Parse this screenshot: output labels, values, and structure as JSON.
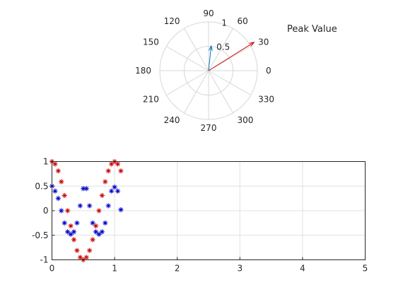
{
  "chart_data": [
    {
      "type": "polar",
      "annotation": "Peak Value",
      "angle_ticks": [
        "0",
        "30",
        "60",
        "90",
        "120",
        "150",
        "180",
        "210",
        "240",
        "270",
        "300",
        "330"
      ],
      "radius_ticks": [
        "0.5",
        "1"
      ],
      "rlim": [
        0,
        1
      ],
      "grid": true,
      "vectors": [
        {
          "angle_deg": 32,
          "magnitude": 1.1,
          "color": "#cc0000"
        },
        {
          "angle_deg": 84,
          "magnitude": 0.51,
          "color": "#0072bd"
        }
      ]
    },
    {
      "type": "scatter",
      "marker": "*",
      "xlim": [
        0,
        5
      ],
      "ylim": [
        -1,
        1
      ],
      "xticks": [
        "0",
        "1",
        "2",
        "3",
        "4",
        "5"
      ],
      "yticks": [
        "-1",
        "-0.5",
        "0",
        "0.5",
        "1"
      ],
      "grid": true,
      "series": [
        {
          "color": "#cc0000",
          "x": [
            0.0,
            0.05,
            0.1,
            0.15,
            0.2,
            0.25,
            0.3,
            0.35,
            0.4,
            0.45,
            0.5,
            0.55,
            0.6,
            0.65,
            0.7,
            0.75,
            0.8,
            0.85,
            0.9,
            0.95,
            1.0,
            1.05,
            1.1
          ],
          "y": [
            1.0,
            0.95,
            0.81,
            0.59,
            0.31,
            0.0,
            -0.31,
            -0.59,
            -0.81,
            -0.95,
            -1.0,
            -0.95,
            -0.81,
            -0.59,
            -0.31,
            0.0,
            0.31,
            0.59,
            0.81,
            0.95,
            1.0,
            0.95,
            0.81
          ]
        },
        {
          "color": "#0000cc",
          "x": [
            0.0,
            0.05,
            0.1,
            0.15,
            0.2,
            0.25,
            0.3,
            0.35,
            0.4,
            0.45,
            0.5,
            0.55,
            0.6,
            0.65,
            0.7,
            0.75,
            0.8,
            0.85,
            0.9,
            0.95,
            1.0,
            1.05,
            1.1
          ],
          "y": [
            0.5,
            0.4,
            0.25,
            0.0,
            -0.25,
            -0.43,
            -0.48,
            -0.43,
            -0.25,
            0.1,
            0.45,
            0.45,
            0.1,
            -0.25,
            -0.43,
            -0.48,
            -0.43,
            -0.25,
            0.1,
            0.4,
            0.48,
            0.4,
            0.02
          ]
        }
      ]
    }
  ]
}
